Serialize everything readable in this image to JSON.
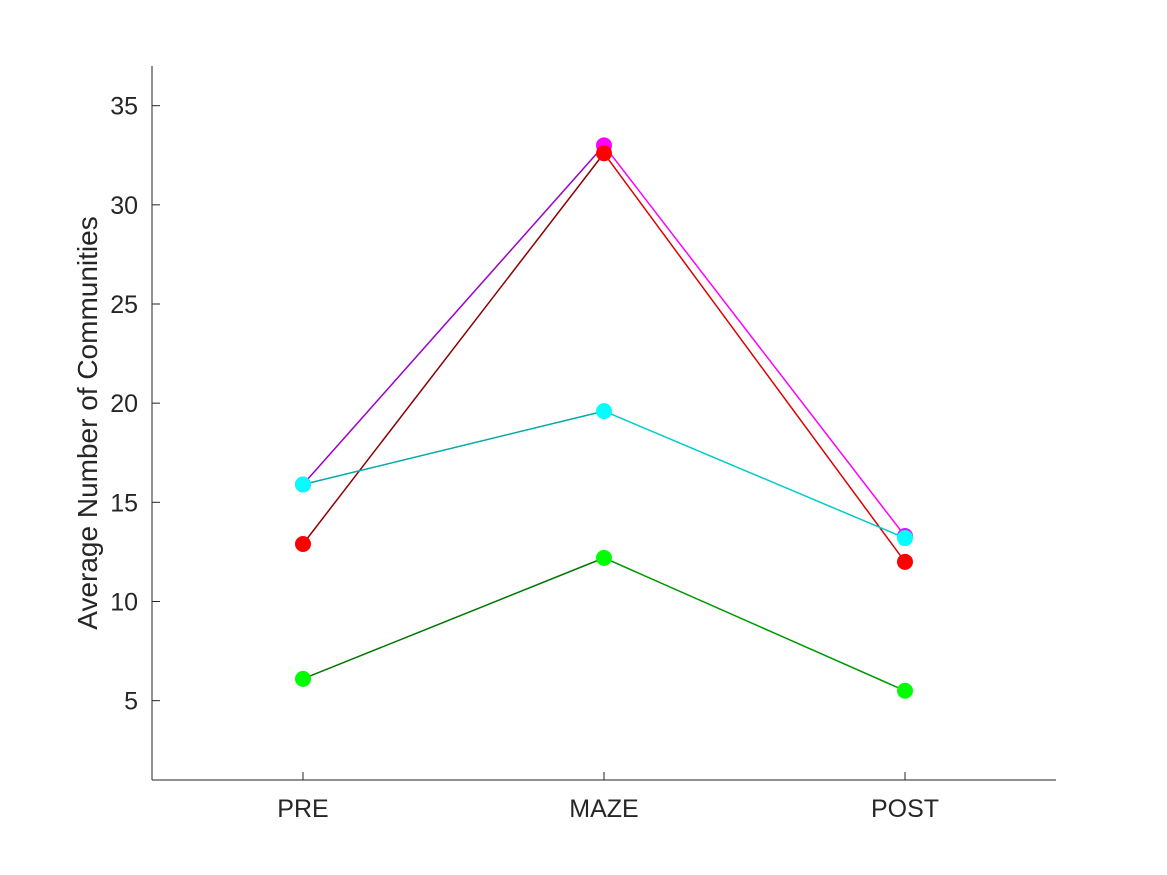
{
  "chart_data": {
    "type": "line",
    "title": "",
    "xlabel": "",
    "ylabel": "Average Number of Communities",
    "categories": [
      "PRE",
      "MAZE",
      "POST"
    ],
    "yticks": [
      5,
      10,
      15,
      20,
      25,
      30,
      35
    ],
    "ylim": [
      1,
      37
    ],
    "grid": false,
    "legend": "none",
    "series": [
      {
        "line_color": "#9900cc",
        "marker_color": "#ff00ff",
        "values": [
          15.9,
          33.0,
          13.3
        ],
        "segment_colors": [
          "#9900cc",
          "#ff00ff"
        ]
      },
      {
        "line_color": "#8b0000",
        "marker_color": "#ff0000",
        "values": [
          12.9,
          32.6,
          12.0
        ],
        "segment_colors": [
          "#8b0000",
          "#dd0000"
        ]
      },
      {
        "line_color": "#00aaaa",
        "marker_color": "#00ffff",
        "values": [
          15.9,
          19.6,
          13.2
        ],
        "segment_colors": [
          "#00aaaa",
          "#00cccc"
        ]
      },
      {
        "line_color": "#006600",
        "marker_color": "#00ff00",
        "values": [
          6.1,
          12.2,
          5.5
        ],
        "segment_colors": [
          "#007700",
          "#009900"
        ]
      }
    ]
  }
}
